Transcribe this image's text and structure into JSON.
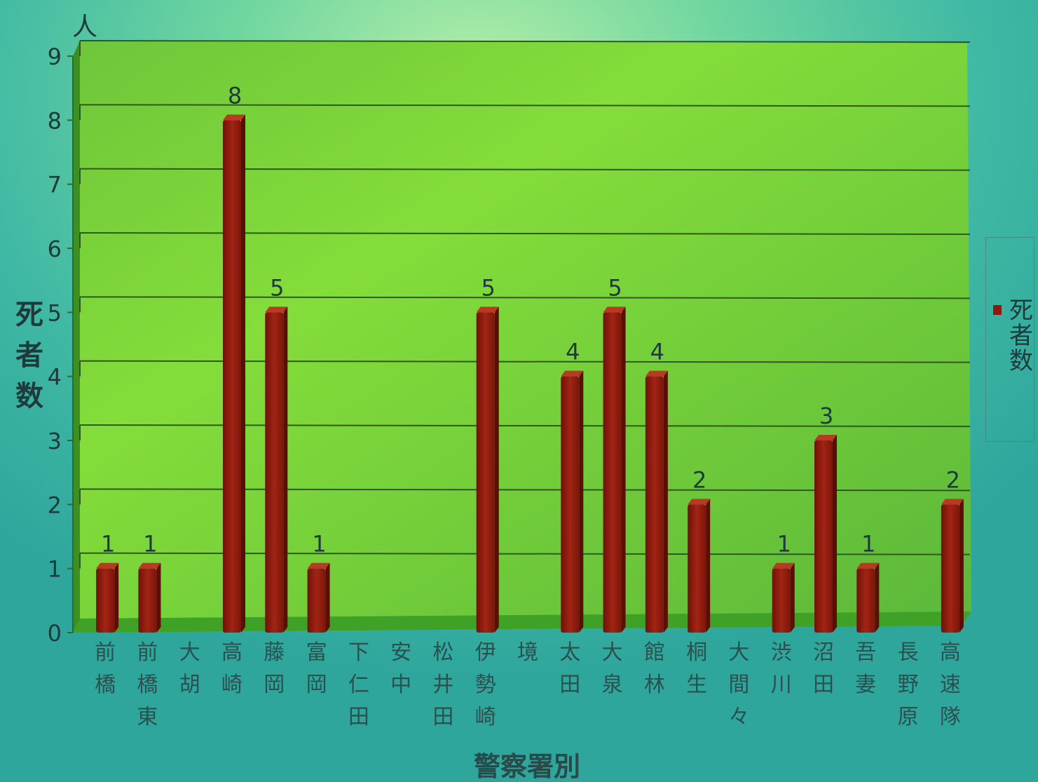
{
  "chart_data": {
    "type": "bar",
    "categories": [
      "前橋",
      "前橋東",
      "大胡",
      "高崎",
      "藤岡",
      "富岡",
      "下仁田",
      "安中",
      "松井田",
      "伊勢崎",
      "境",
      "太田",
      "大泉",
      "館林",
      "桐生",
      "大間々",
      "渋川",
      "沼田",
      "吾妻",
      "長野原",
      "高速隊"
    ],
    "series": [
      {
        "name": "死者数",
        "values": [
          1,
          1,
          0,
          8,
          5,
          1,
          0,
          0,
          0,
          5,
          0,
          4,
          5,
          4,
          2,
          0,
          1,
          3,
          1,
          0,
          2
        ],
        "labels": [
          "1",
          "1",
          "",
          "8",
          "5",
          "1",
          "",
          "",
          "",
          "5",
          "",
          "4",
          "5",
          "4",
          "2",
          "",
          "1",
          "3",
          "1",
          "",
          "2"
        ]
      }
    ],
    "y_unit": "人",
    "ylabel": "死者数",
    "xlabel": "警察署別",
    "ylim": [
      0,
      9
    ],
    "yticks": [
      "0",
      "1",
      "2",
      "3",
      "4",
      "5",
      "6",
      "7",
      "8",
      "9"
    ],
    "grid": true,
    "legend": "right",
    "colors": {
      "bar": "#8c1a10",
      "plot_back": "#73cc2d",
      "plot_floor": "#3fa227"
    }
  }
}
